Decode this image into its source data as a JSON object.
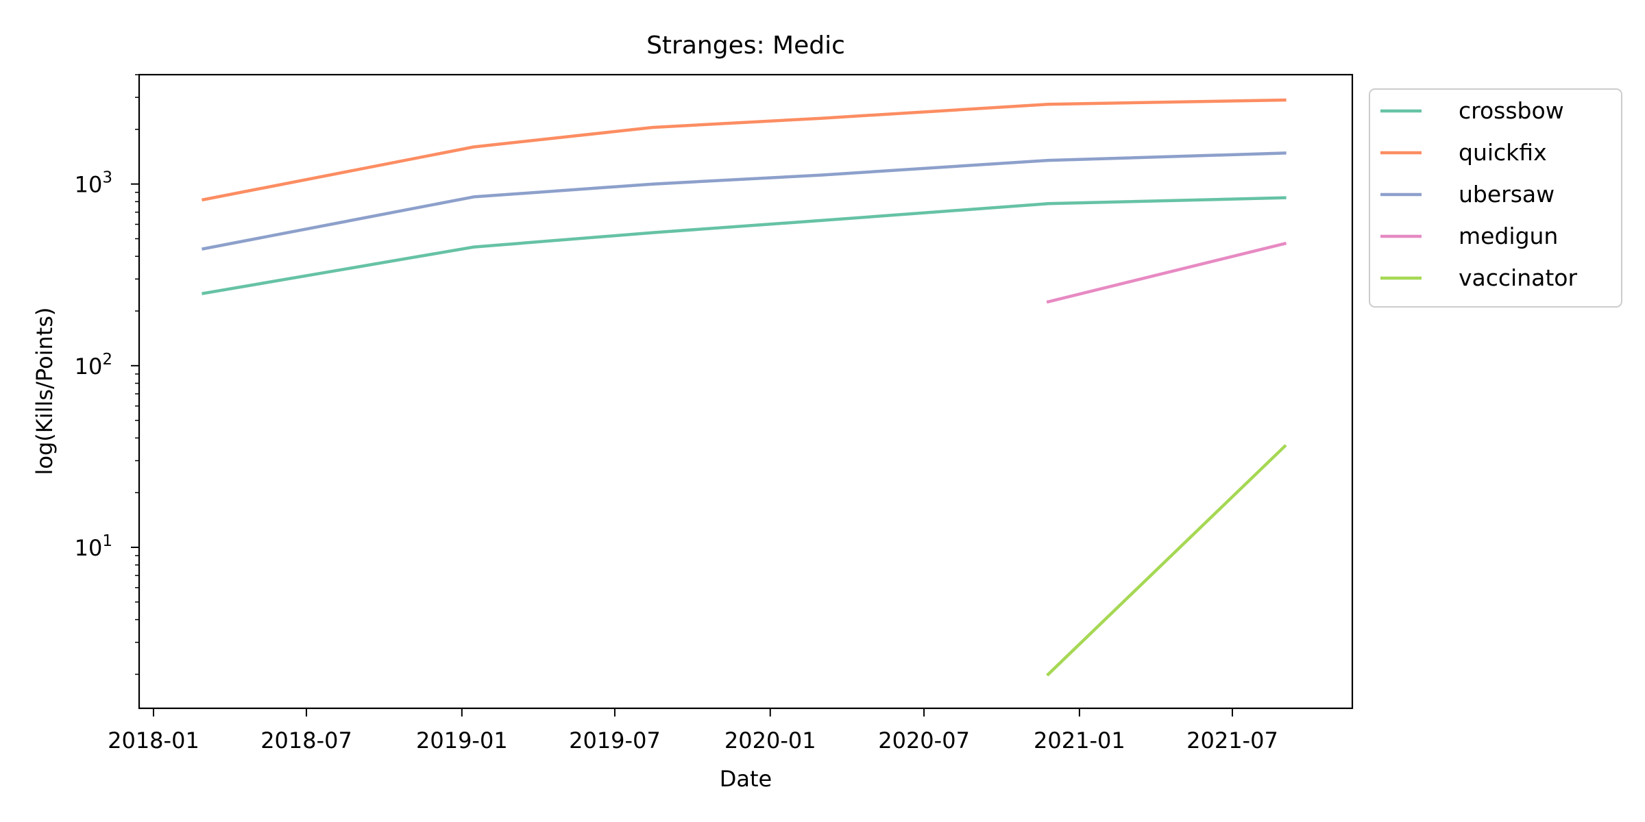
{
  "chart_data": {
    "type": "line",
    "title": "Stranges: Medic",
    "xlabel": "Date",
    "ylabel": "log(Kills/Points)",
    "yscale": "log",
    "ylim": [
      1.3,
      4000
    ],
    "xlim": [
      "2017-12-15",
      "2021-11-20"
    ],
    "y_major_ticks": [
      {
        "value": 10,
        "base": "10",
        "exp": "1"
      },
      {
        "value": 100,
        "base": "10",
        "exp": "2"
      },
      {
        "value": 1000,
        "base": "10",
        "exp": "3"
      }
    ],
    "x_ticks": [
      "2018-01",
      "2018-07",
      "2019-01",
      "2019-07",
      "2020-01",
      "2020-07",
      "2021-01",
      "2021-07"
    ],
    "grid": false,
    "legend": "outside-top-right",
    "series": [
      {
        "name": "crossbow",
        "color": "#66c2a5",
        "x": [
          "2018-03-01",
          "2019-01-15",
          "2019-08-15",
          "2020-03-01",
          "2020-11-25",
          "2021-09-01"
        ],
        "y": [
          250,
          450,
          540,
          630,
          780,
          840
        ]
      },
      {
        "name": "quickfix",
        "color": "#fc8d62",
        "x": [
          "2018-03-01",
          "2019-01-15",
          "2019-08-15",
          "2020-03-01",
          "2020-11-25",
          "2021-09-01"
        ],
        "y": [
          820,
          1600,
          2050,
          2300,
          2750,
          2900
        ]
      },
      {
        "name": "ubersaw",
        "color": "#8da0cb",
        "x": [
          "2018-03-01",
          "2019-01-15",
          "2019-08-15",
          "2020-03-01",
          "2020-11-25",
          "2021-09-01"
        ],
        "y": [
          440,
          850,
          1000,
          1120,
          1350,
          1480
        ]
      },
      {
        "name": "medigun",
        "color": "#e78ac3",
        "x": [
          "2020-11-25",
          "2021-09-01"
        ],
        "y": [
          225,
          470
        ]
      },
      {
        "name": "vaccinator",
        "color": "#a6d854",
        "x": [
          "2020-11-25",
          "2021-09-01"
        ],
        "y": [
          2,
          36
        ]
      }
    ]
  }
}
